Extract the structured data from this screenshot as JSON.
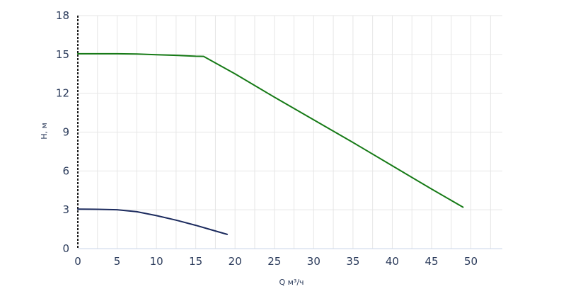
{
  "chart_data": {
    "type": "line",
    "title": "",
    "xlabel": "Q м³/ч",
    "ylabel": "H, м",
    "xlim": [
      0,
      54
    ],
    "ylim": [
      0,
      18
    ],
    "x_ticks": [
      0,
      5,
      10,
      15,
      20,
      25,
      30,
      35,
      40,
      45,
      50
    ],
    "y_ticks": [
      0,
      3,
      6,
      9,
      12,
      15,
      18
    ],
    "grid": "vertical-and-horizontal",
    "legend": "none",
    "series": [
      {
        "color": "#167a16",
        "points": [
          [
            0,
            15.05
          ],
          [
            5,
            15.05
          ],
          [
            7.5,
            15.03
          ],
          [
            10,
            14.98
          ],
          [
            12.5,
            14.93
          ],
          [
            15,
            14.86
          ],
          [
            16,
            14.85
          ],
          [
            20,
            13.5
          ],
          [
            25,
            11.7
          ],
          [
            30,
            9.95
          ],
          [
            35,
            8.2
          ],
          [
            40,
            6.4
          ],
          [
            45,
            4.6
          ],
          [
            49,
            3.2
          ]
        ]
      },
      {
        "color": "#1c2b5e",
        "points": [
          [
            0,
            3.05
          ],
          [
            2.5,
            3.04
          ],
          [
            5,
            3.0
          ],
          [
            7.5,
            2.85
          ],
          [
            10,
            2.55
          ],
          [
            12.5,
            2.2
          ],
          [
            15,
            1.8
          ],
          [
            17,
            1.45
          ],
          [
            19,
            1.1
          ]
        ]
      }
    ]
  }
}
